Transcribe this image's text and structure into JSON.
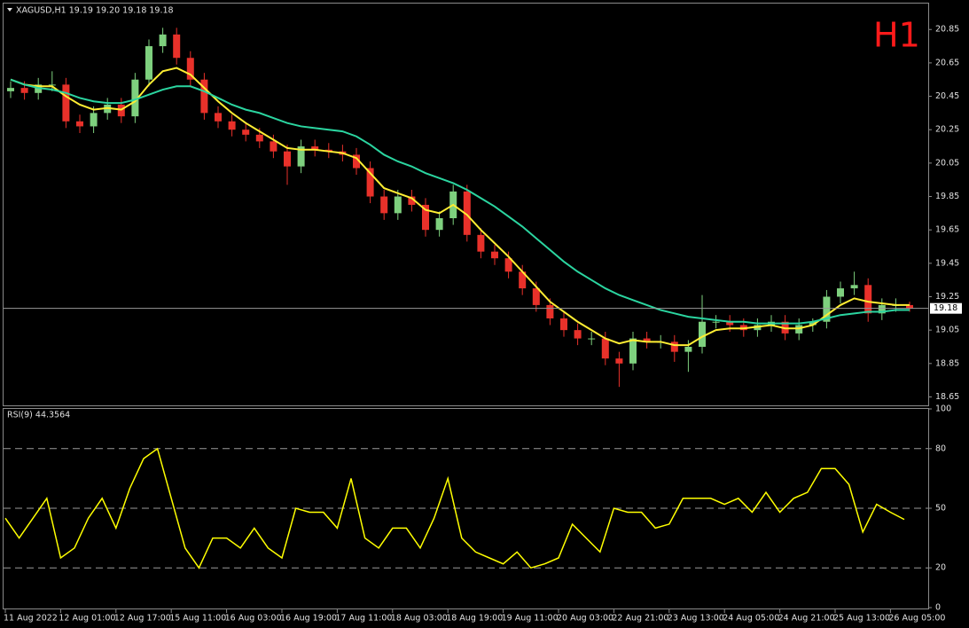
{
  "chart_data": [
    {
      "type": "candlestick",
      "title": "XAGUSD,H1  19.19 19.20 19.18 19.18",
      "annotation": "H1",
      "categories": [
        "11 Aug 2022",
        null,
        null,
        null,
        "12 Aug 01:00",
        null,
        null,
        null,
        "12 Aug 17:00",
        null,
        null,
        null,
        "15 Aug 11:00",
        null,
        null,
        null,
        "16 Aug 03:00",
        null,
        null,
        null,
        "16 Aug 19:00",
        null,
        null,
        null,
        "17 Aug 11:00",
        null,
        null,
        null,
        "18 Aug 03:00",
        null,
        null,
        null,
        "18 Aug 19:00",
        null,
        null,
        null,
        "19 Aug 11:00",
        null,
        null,
        null,
        "20 Aug 03:00",
        null,
        null,
        null,
        "22 Aug 21:00",
        null,
        null,
        null,
        "23 Aug 13:00",
        null,
        null,
        null,
        "24 Aug 05:00",
        null,
        null,
        null,
        "24 Aug 21:00",
        null,
        null,
        null,
        "25 Aug 13:00",
        null,
        null,
        null,
        "26 Aug 05:00",
        null
      ],
      "open": [
        20.48,
        20.5,
        20.47,
        20.52,
        20.52,
        20.3,
        20.27,
        20.35,
        20.4,
        20.33,
        20.55,
        20.75,
        20.82,
        20.68,
        20.55,
        20.35,
        20.3,
        20.25,
        20.22,
        20.18,
        20.12,
        20.03,
        20.15,
        20.13,
        20.12,
        20.1,
        20.02,
        19.85,
        19.75,
        19.85,
        19.8,
        19.65,
        19.72,
        19.88,
        19.62,
        19.52,
        19.48,
        19.4,
        19.3,
        19.2,
        19.12,
        19.05,
        19.0,
        19.0,
        18.88,
        18.85,
        19.0,
        18.98,
        18.98,
        18.92,
        18.95,
        19.1,
        19.1,
        19.08,
        19.05,
        19.08,
        19.1,
        19.03,
        19.08,
        19.1,
        19.25,
        19.3,
        19.32,
        19.15,
        19.2,
        19.2
      ],
      "high": [
        20.54,
        20.54,
        20.56,
        20.6,
        20.56,
        20.34,
        20.39,
        20.44,
        20.44,
        20.59,
        20.79,
        20.86,
        20.86,
        20.72,
        20.59,
        20.39,
        20.34,
        20.29,
        20.26,
        20.22,
        20.16,
        20.19,
        20.19,
        20.17,
        20.16,
        20.14,
        20.06,
        19.89,
        19.89,
        19.89,
        19.84,
        19.76,
        19.92,
        19.92,
        19.66,
        19.56,
        19.52,
        19.44,
        19.34,
        19.24,
        19.16,
        19.09,
        19.04,
        19.04,
        18.92,
        19.04,
        19.04,
        19.02,
        19.02,
        18.99,
        19.26,
        19.14,
        19.14,
        19.12,
        19.12,
        19.14,
        19.14,
        19.12,
        19.12,
        19.29,
        19.34,
        19.4,
        19.36,
        19.24,
        19.24,
        19.22
      ],
      "low": [
        20.44,
        20.43,
        20.43,
        20.48,
        20.26,
        20.23,
        20.23,
        20.31,
        20.29,
        20.29,
        20.51,
        20.71,
        20.64,
        20.51,
        20.31,
        20.26,
        20.21,
        20.18,
        20.14,
        20.08,
        19.92,
        19.99,
        20.09,
        20.08,
        20.06,
        19.98,
        19.81,
        19.71,
        19.71,
        19.76,
        19.61,
        19.61,
        19.68,
        19.58,
        19.48,
        19.44,
        19.36,
        19.26,
        19.16,
        19.08,
        19.01,
        18.96,
        18.96,
        18.84,
        18.71,
        18.81,
        18.94,
        18.94,
        18.86,
        18.8,
        18.91,
        19.06,
        19.04,
        19.01,
        19.01,
        19.04,
        18.99,
        18.99,
        19.04,
        19.06,
        19.21,
        19.26,
        19.1,
        19.11,
        19.16,
        19.16
      ],
      "close": [
        20.5,
        20.47,
        20.52,
        20.52,
        20.3,
        20.27,
        20.35,
        20.4,
        20.33,
        20.55,
        20.75,
        20.82,
        20.68,
        20.55,
        20.35,
        20.3,
        20.25,
        20.22,
        20.18,
        20.12,
        20.03,
        20.15,
        20.13,
        20.12,
        20.1,
        20.02,
        19.85,
        19.75,
        19.85,
        19.8,
        19.65,
        19.72,
        19.88,
        19.62,
        19.52,
        19.48,
        19.4,
        19.3,
        19.2,
        19.12,
        19.05,
        19.0,
        19.0,
        18.88,
        18.85,
        19.0,
        18.98,
        18.98,
        18.92,
        18.95,
        19.1,
        19.1,
        19.08,
        19.05,
        19.08,
        19.1,
        19.03,
        19.08,
        19.1,
        19.25,
        19.3,
        19.32,
        19.15,
        19.2,
        19.2,
        19.18
      ],
      "up_color": "#7ed07e",
      "down_color": "#e8312a",
      "series": [
        {
          "color": "#ffee33",
          "values": [
            20.55,
            20.52,
            20.51,
            20.51,
            20.45,
            20.4,
            20.37,
            20.38,
            20.37,
            20.42,
            20.52,
            20.6,
            20.62,
            20.58,
            20.5,
            20.42,
            20.35,
            20.29,
            20.24,
            20.19,
            20.14,
            20.13,
            20.13,
            20.12,
            20.11,
            20.08,
            19.99,
            19.9,
            19.87,
            19.84,
            19.77,
            19.75,
            19.8,
            19.74,
            19.65,
            19.57,
            19.49,
            19.4,
            19.31,
            19.22,
            19.16,
            19.1,
            19.05,
            19.0,
            18.97,
            18.99,
            18.98,
            18.98,
            18.96,
            18.96,
            19.01,
            19.05,
            19.06,
            19.06,
            19.07,
            19.08,
            19.06,
            19.06,
            19.08,
            19.14,
            19.2,
            19.24,
            19.22,
            19.21,
            19.2,
            19.2
          ]
        },
        {
          "color": "#2bd5a0",
          "values": [
            20.55,
            20.52,
            20.5,
            20.49,
            20.47,
            20.44,
            20.42,
            20.41,
            20.41,
            20.43,
            20.46,
            20.49,
            20.51,
            20.51,
            20.48,
            20.44,
            20.4,
            20.37,
            20.35,
            20.32,
            20.29,
            20.27,
            20.26,
            20.25,
            20.24,
            20.21,
            20.16,
            20.1,
            20.06,
            20.03,
            19.99,
            19.96,
            19.93,
            19.89,
            19.84,
            19.79,
            19.73,
            19.67,
            19.6,
            19.53,
            19.46,
            19.4,
            19.35,
            19.3,
            19.26,
            19.23,
            19.2,
            19.17,
            19.15,
            19.13,
            19.12,
            19.11,
            19.1,
            19.1,
            19.09,
            19.09,
            19.09,
            19.09,
            19.1,
            19.12,
            19.14,
            19.15,
            19.16,
            19.16,
            19.17,
            19.17
          ]
        }
      ],
      "last_price": 19.18,
      "ylim": [
        18.61,
        21.0
      ],
      "yticks": [
        18.65,
        18.85,
        19.05,
        19.25,
        19.45,
        19.65,
        19.85,
        20.05,
        20.25,
        20.45,
        20.65,
        20.85
      ]
    },
    {
      "type": "line",
      "title": "RSI(9) 44.3564",
      "series": [
        {
          "color": "#ffff00",
          "values": [
            45,
            35,
            45,
            55,
            25,
            30,
            45,
            55,
            40,
            60,
            75,
            80,
            55,
            30,
            20,
            35,
            35,
            30,
            40,
            30,
            25,
            50,
            48,
            48,
            40,
            65,
            35,
            30,
            40,
            40,
            30,
            45,
            65,
            35,
            28,
            25,
            22,
            28,
            20,
            22,
            25,
            42,
            35,
            28,
            50,
            48,
            48,
            40,
            42,
            55,
            55,
            55,
            52,
            55,
            48,
            58,
            48,
            55,
            58,
            70,
            70,
            62,
            38,
            52,
            48,
            44.3564
          ]
        }
      ],
      "ylim": [
        0,
        100
      ],
      "yticks": [
        0,
        20,
        50,
        80,
        100
      ],
      "levels": [
        20,
        50,
        80
      ]
    }
  ]
}
